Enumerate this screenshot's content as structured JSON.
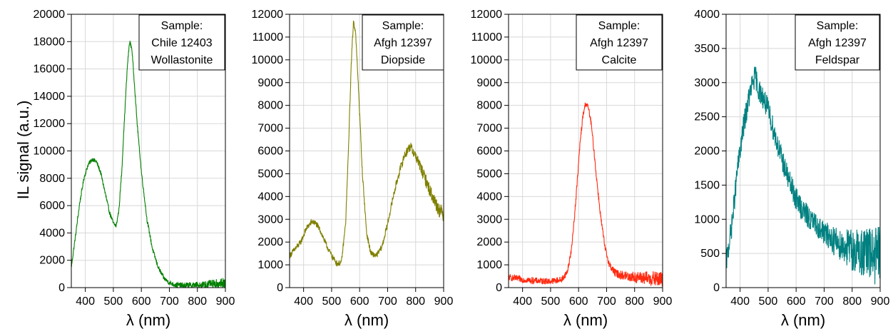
{
  "figure": {
    "ylabel": "IL signal (a.u.)"
  },
  "chart_data": [
    {
      "type": "line",
      "xlabel": "λ (nm)",
      "ylabel": "IL signal (a.u.)",
      "xlim": [
        350,
        900
      ],
      "ylim": [
        0,
        20000
      ],
      "x_ticks": [
        "400",
        "500",
        "600",
        "700",
        "800",
        "900"
      ],
      "y_ticks": [
        "0",
        "2000",
        "4000",
        "6000",
        "8000",
        "10000",
        "12000",
        "14000",
        "16000",
        "18000",
        "20000"
      ],
      "grid": true,
      "legend": {
        "placement": "top-right",
        "lines": [
          "Sample:",
          "Chile 12403",
          "Wollastonite"
        ]
      },
      "series": [
        {
          "color": "#008000",
          "noise": 160,
          "x": [
            350,
            365,
            380,
            395,
            410,
            425,
            440,
            455,
            470,
            485,
            500,
            510,
            520,
            530,
            540,
            550,
            558,
            566,
            575,
            585,
            600,
            620,
            640,
            660,
            680,
            700,
            720,
            750,
            800,
            850,
            900
          ],
          "y": [
            1500,
            3800,
            6200,
            8000,
            9000,
            9400,
            9200,
            8400,
            7000,
            5600,
            4700,
            4500,
            5700,
            8500,
            12500,
            16200,
            18000,
            17500,
            15000,
            12000,
            8500,
            5000,
            2800,
            1500,
            700,
            350,
            200,
            150,
            150,
            200,
            300
          ]
        }
      ]
    },
    {
      "type": "line",
      "xlabel": "λ (nm)",
      "xlim": [
        350,
        900
      ],
      "ylim": [
        0,
        12000
      ],
      "x_ticks": [
        "400",
        "500",
        "600",
        "700",
        "800",
        "900"
      ],
      "y_ticks": [
        "0",
        "1000",
        "2000",
        "3000",
        "4000",
        "5000",
        "6000",
        "7000",
        "8000",
        "9000",
        "10000",
        "11000",
        "12000"
      ],
      "grid": true,
      "legend": {
        "placement": "top-right",
        "lines": [
          "Sample:",
          "Afgh 12397",
          "Diopside"
        ]
      },
      "series": [
        {
          "color": "#808000",
          "noise": 130,
          "x": [
            350,
            370,
            390,
            410,
            430,
            445,
            460,
            480,
            500,
            520,
            535,
            550,
            560,
            570,
            578,
            585,
            595,
            610,
            625,
            640,
            660,
            680,
            700,
            720,
            740,
            760,
            780,
            800,
            820,
            840,
            860,
            880,
            900
          ],
          "y": [
            1400,
            1700,
            2000,
            2600,
            2900,
            2800,
            2500,
            1900,
            1400,
            1050,
            1100,
            2800,
            6000,
            9800,
            11700,
            11300,
            9000,
            5000,
            2400,
            1500,
            1400,
            1800,
            2800,
            4000,
            5000,
            5800,
            6200,
            5800,
            5200,
            4600,
            4000,
            3500,
            3200
          ]
        }
      ]
    },
    {
      "type": "line",
      "xlabel": "λ (nm)",
      "xlim": [
        350,
        900
      ],
      "ylim": [
        0,
        12000
      ],
      "x_ticks": [
        "400",
        "500",
        "600",
        "700",
        "800",
        "900"
      ],
      "y_ticks": [
        "0",
        "1000",
        "2000",
        "3000",
        "4000",
        "5000",
        "6000",
        "7000",
        "8000",
        "9000",
        "10000",
        "11000",
        "12000"
      ],
      "grid": true,
      "legend": {
        "placement": "top-right",
        "lines": [
          "Sample:",
          "Afgh 12397",
          "Calcite"
        ]
      },
      "series": [
        {
          "color": "#ff2a10",
          "noise": 140,
          "x": [
            350,
            400,
            450,
            500,
            540,
            560,
            575,
            590,
            605,
            615,
            625,
            635,
            645,
            655,
            665,
            680,
            695,
            710,
            730,
            750,
            800,
            850,
            900
          ],
          "y": [
            450,
            350,
            300,
            280,
            350,
            700,
            1700,
            3800,
            6300,
            7500,
            8100,
            7900,
            7200,
            6000,
            4700,
            3000,
            1700,
            1000,
            650,
            550,
            450,
            400,
            350
          ]
        }
      ]
    },
    {
      "type": "line",
      "xlabel": "λ (nm)",
      "xlim": [
        350,
        900
      ],
      "ylim": [
        0,
        4000
      ],
      "x_ticks": [
        "400",
        "500",
        "600",
        "700",
        "800",
        "900"
      ],
      "y_ticks": [
        "0",
        "500",
        "1000",
        "1500",
        "2000",
        "2500",
        "3000",
        "3500",
        "4000"
      ],
      "grid": true,
      "legend": {
        "placement": "top-right",
        "lines": [
          "Sample:",
          "Afgh 12397",
          "Feldspar"
        ]
      },
      "series": [
        {
          "color": "#008080",
          "noise": 170,
          "x": [
            350,
            370,
            390,
            410,
            430,
            445,
            455,
            465,
            480,
            500,
            520,
            540,
            560,
            580,
            600,
            620,
            650,
            700,
            750,
            800,
            850,
            900
          ],
          "y": [
            350,
            900,
            1700,
            2300,
            2750,
            3000,
            3100,
            2900,
            2800,
            2600,
            2300,
            2000,
            1750,
            1500,
            1300,
            1150,
            1000,
            800,
            650,
            550,
            500,
            450
          ]
        }
      ]
    }
  ]
}
